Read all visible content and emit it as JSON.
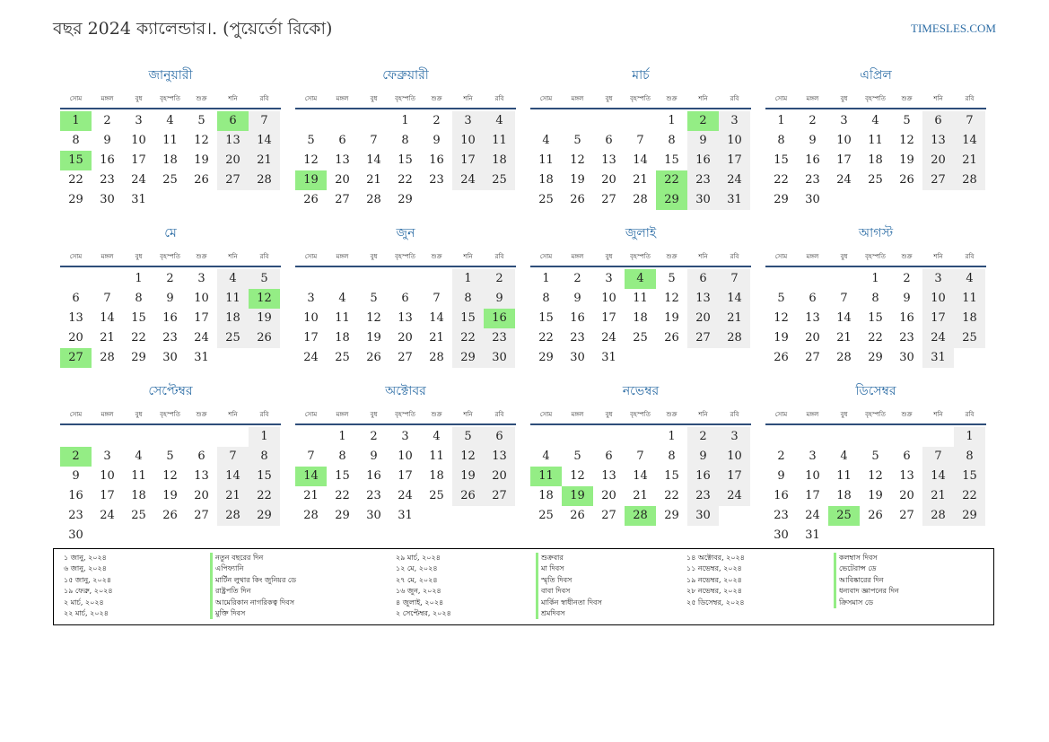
{
  "title": "বছর 2024 ক্যালেন্ডার।. (পুয়ের্তো রিকো)",
  "site": "TIMESLES.COM",
  "weekdays": [
    "সোম",
    "মঙ্গল",
    "বুধ",
    "বৃহস্পতি",
    "শুক্র",
    "শনি",
    "রবি"
  ],
  "colors": {
    "accent": "#2e6ea6",
    "holiday": "#94ed85",
    "weekend": "#efefef"
  },
  "months": [
    {
      "name": "জানুয়ারী",
      "start": 0,
      "days": 31,
      "holidays": [
        1,
        6,
        15
      ]
    },
    {
      "name": "ফেব্রুয়ারী",
      "start": 3,
      "days": 29,
      "holidays": [
        19
      ]
    },
    {
      "name": "মার্চ",
      "start": 4,
      "days": 31,
      "holidays": [
        2,
        22,
        29
      ]
    },
    {
      "name": "এপ্রিল",
      "start": 0,
      "days": 30,
      "holidays": []
    },
    {
      "name": "মে",
      "start": 2,
      "days": 31,
      "holidays": [
        12,
        27
      ]
    },
    {
      "name": "জুন",
      "start": 5,
      "days": 30,
      "holidays": [
        16
      ]
    },
    {
      "name": "জুলাই",
      "start": 0,
      "days": 31,
      "holidays": [
        4
      ]
    },
    {
      "name": "আগস্ট",
      "start": 3,
      "days": 31,
      "holidays": []
    },
    {
      "name": "সেপ্টেম্বর",
      "start": 6,
      "days": 30,
      "holidays": [
        2
      ]
    },
    {
      "name": "অক্টোবর",
      "start": 1,
      "days": 31,
      "holidays": [
        14
      ]
    },
    {
      "name": "নভেম্বর",
      "start": 4,
      "days": 30,
      "holidays": [
        11,
        19,
        28
      ]
    },
    {
      "name": "ডিসেম্বর",
      "start": 6,
      "days": 31,
      "holidays": [
        25
      ]
    }
  ],
  "holiday_list": [
    {
      "date": "১ জানু, ২০২৪",
      "name": "নতুন বছরের দিন"
    },
    {
      "date": "৬ জানু, ২০২৪",
      "name": "এপিফ্যানি"
    },
    {
      "date": "১৫ জানু, ২০২৪",
      "name": "মার্টিন লুথার কিং জুনিয়র ডে"
    },
    {
      "date": "১৯ ফেব্রু, ২০২৪",
      "name": "রাষ্ট্রপতি দিন"
    },
    {
      "date": "২ মার্চ, ২০২৪",
      "name": "আমেরিকান নাগরিকত্ব দিবস"
    },
    {
      "date": "২২ মার্চ, ২০২৪",
      "name": "মুক্তি দিবস"
    },
    {
      "date": "২৯ মার্চ, ২০২৪",
      "name": "শুক্রবার"
    },
    {
      "date": "১২ মে, ২০২৪",
      "name": "মা দিবস"
    },
    {
      "date": "২৭ মে, ২০২৪",
      "name": "স্মৃতি দিবস"
    },
    {
      "date": "১৬ জুন, ২০২৪",
      "name": "বাবা দিবস"
    },
    {
      "date": "৪ জুলাই, ২০২৪",
      "name": "মার্কিন স্বাধীনতা দিবস"
    },
    {
      "date": "২ সেপ্টেম্বর, ২০২৪",
      "name": "শ্রমদিবস"
    },
    {
      "date": "১৪ অক্টোবর, ২০২৪",
      "name": "কলম্বাস দিবস"
    },
    {
      "date": "১১ নভেম্বর, ২০২৪",
      "name": "ভেটেরান্স ডে"
    },
    {
      "date": "১৯ নভেম্বর, ২০২৪",
      "name": "আবিষ্কারের দিন"
    },
    {
      "date": "২৮ নভেম্বর, ২০২৪",
      "name": "ধন্যবাদ জ্ঞাপনের দিন"
    },
    {
      "date": "২৫ ডিসেম্বর, ২০২৪",
      "name": "ক্রিসমাস ডে"
    }
  ]
}
